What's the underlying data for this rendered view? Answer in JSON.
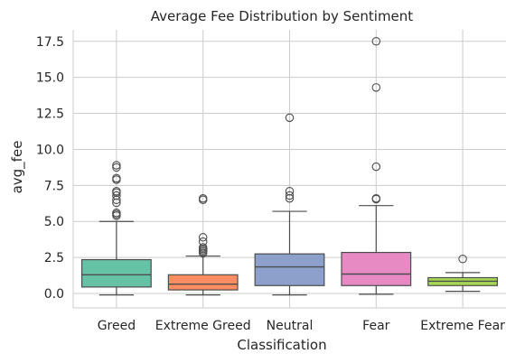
{
  "chart_data": {
    "type": "box",
    "title": "Average Fee Distribution by Sentiment",
    "xlabel": "Classification",
    "ylabel": "avg_fee",
    "ylim": [
      -1.0,
      18.3
    ],
    "yticks": [
      0.0,
      2.5,
      5.0,
      7.5,
      10.0,
      12.5,
      15.0,
      17.5
    ],
    "ytick_labels": [
      "0.0",
      "2.5",
      "5.0",
      "7.5",
      "10.0",
      "12.5",
      "15.0",
      "17.5"
    ],
    "grid": "horizontal",
    "categories": [
      "Greed",
      "Extreme Greed",
      "Neutral",
      "Fear",
      "Extreme Fear"
    ],
    "colors": [
      "#66c2a5",
      "#fc8d62",
      "#8da0cb",
      "#e78ac3",
      "#a6d854"
    ],
    "boxes": [
      {
        "category": "Greed",
        "whisker_low": -0.1,
        "q1": 0.45,
        "median": 1.3,
        "q3": 2.35,
        "whisker_high": 5.0,
        "outliers": [
          8.9,
          8.75,
          8.0,
          7.9,
          7.1,
          7.0,
          6.8,
          6.5,
          6.3,
          5.6,
          5.5,
          5.4
        ]
      },
      {
        "category": "Extreme Greed",
        "whisker_low": -0.1,
        "q1": 0.25,
        "median": 0.65,
        "q3": 1.3,
        "whisker_high": 2.6,
        "outliers": [
          6.6,
          6.5,
          3.9,
          3.6,
          3.2,
          3.1,
          3.0,
          2.9,
          2.8
        ]
      },
      {
        "category": "Neutral",
        "whisker_low": -0.1,
        "q1": 0.55,
        "median": 1.85,
        "q3": 2.75,
        "whisker_high": 5.7,
        "outliers": [
          12.2,
          7.1,
          6.8,
          6.6
        ]
      },
      {
        "category": "Fear",
        "whisker_low": -0.05,
        "q1": 0.55,
        "median": 1.35,
        "q3": 2.85,
        "whisker_high": 6.1,
        "outliers": [
          17.5,
          14.3,
          8.8,
          6.6,
          6.55
        ]
      },
      {
        "category": "Extreme Fear",
        "whisker_low": 0.15,
        "q1": 0.55,
        "median": 0.85,
        "q3": 1.1,
        "whisker_high": 1.45,
        "outliers": [
          2.4
        ]
      }
    ]
  }
}
